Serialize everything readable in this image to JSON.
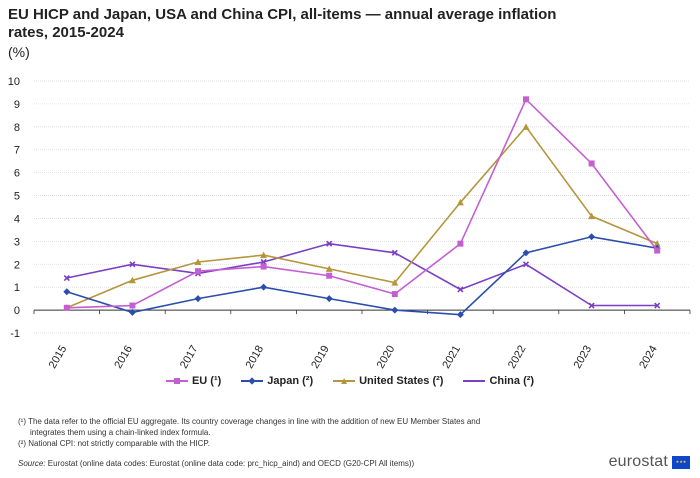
{
  "title": "EU HICP and Japan, USA and China CPI, all-items — annual average inflation rates, 2015-2024",
  "unit": "(%)",
  "chart_data": {
    "type": "line",
    "x": [
      "2015",
      "2016",
      "2017",
      "2018",
      "2019",
      "2020",
      "2021",
      "2022",
      "2023",
      "2024"
    ],
    "ylim": [
      -1,
      10
    ],
    "yticks": [
      -1,
      0,
      1,
      2,
      3,
      4,
      5,
      6,
      7,
      8,
      9,
      10
    ],
    "grid": true,
    "legend_position": "bottom",
    "series": [
      {
        "name": "EU (¹)",
        "color": "#c45fd1",
        "marker": "square",
        "values": [
          0.1,
          0.2,
          1.7,
          1.9,
          1.5,
          0.7,
          2.9,
          9.2,
          6.4,
          2.6
        ]
      },
      {
        "name": "Japan (²)",
        "color": "#2b4eae",
        "marker": "diamond",
        "values": [
          0.8,
          -0.1,
          0.5,
          1.0,
          0.5,
          0.0,
          -0.2,
          2.5,
          3.2,
          2.7
        ]
      },
      {
        "name": "United States (²)",
        "color": "#b5963c",
        "marker": "triangle",
        "values": [
          0.1,
          1.3,
          2.1,
          2.4,
          1.8,
          1.2,
          4.7,
          8.0,
          4.1,
          2.9
        ]
      },
      {
        "name": "China (²)",
        "color": "#7a3fc4",
        "marker": "cross",
        "values": [
          1.4,
          2.0,
          1.6,
          2.1,
          2.9,
          2.5,
          0.9,
          2.0,
          0.2,
          0.2
        ]
      }
    ]
  },
  "footnotes": {
    "fn1_line1": "(¹) The data refer to the official EU aggregate. Its country coverage changes in line with the addition of new EU Member States and",
    "fn1_line2": "integrates them using a chain-linked index formula.",
    "fn2": "(²) National CPI: not strictly comparable with the HICP."
  },
  "source": {
    "label": "Source:",
    "text": " Eurostat (online data codes: Eurostat (online data code: prc_hicp_aind) and OECD (G20-CPI All items))"
  },
  "brand": {
    "name": "eurostat",
    "flag_color": "#0e47cb",
    "star_color": "#ffd617"
  }
}
